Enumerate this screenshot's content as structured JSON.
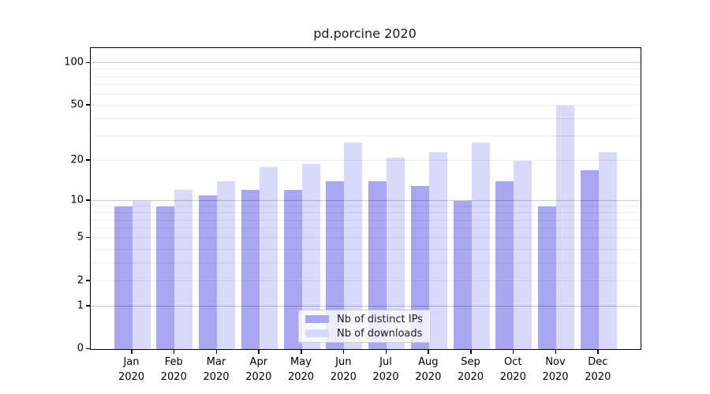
{
  "title": "pd.porcine 2020",
  "legend": {
    "items": [
      {
        "label": "Nb of distinct IPs",
        "color": "#a7a7f2"
      },
      {
        "label": "Nb of downloads",
        "color": "#d9d9f9"
      }
    ]
  },
  "axes": {
    "y_tick_labels": [
      "100",
      "50",
      "20",
      "10",
      "5",
      "2",
      "1",
      "0"
    ],
    "x_year": "2020"
  },
  "chart_data": {
    "type": "bar",
    "title": "pd.porcine 2020",
    "xlabel": "",
    "ylabel": "",
    "yscale": "log1p",
    "ylim": [
      0,
      128
    ],
    "grid": true,
    "legend_position": "lower center",
    "categories": [
      "Jan 2020",
      "Feb 2020",
      "Mar 2020",
      "Apr 2020",
      "May 2020",
      "Jun 2020",
      "Jul 2020",
      "Aug 2020",
      "Sep 2020",
      "Oct 2020",
      "Nov 2020",
      "Dec 2020"
    ],
    "months": [
      "Jan",
      "Feb",
      "Mar",
      "Apr",
      "May",
      "Jun",
      "Jul",
      "Aug",
      "Sep",
      "Oct",
      "Nov",
      "Dec"
    ],
    "y_ticks": [
      0,
      1,
      2,
      5,
      10,
      20,
      50,
      100
    ],
    "y_major_gridlines": [
      1,
      10,
      100
    ],
    "y_minor_gridlines": [
      2,
      3,
      4,
      5,
      6,
      7,
      8,
      9,
      20,
      30,
      40,
      50,
      60,
      70,
      80,
      90
    ],
    "series": [
      {
        "name": "Nb of distinct IPs",
        "color": "#a7a7f2",
        "values": [
          9,
          9,
          11,
          12,
          12,
          14,
          14,
          13,
          10,
          14,
          9,
          17
        ]
      },
      {
        "name": "Nb of downloads",
        "color": "#d9d9f9",
        "values": [
          10,
          12,
          14,
          18,
          19,
          27,
          21,
          23,
          27,
          20,
          50,
          23
        ]
      }
    ]
  },
  "colors": {
    "axis": "#000000",
    "grid_major": "#c7c7c7",
    "grid_minor": "#ededed",
    "legend_border": "#cccccc",
    "background": "#ffffff"
  }
}
